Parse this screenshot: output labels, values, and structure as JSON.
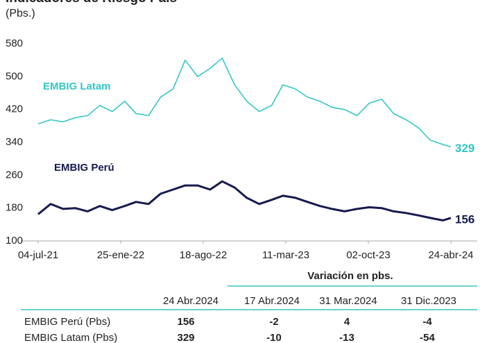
{
  "chart_data": {
    "type": "line",
    "title": "Indicadores de Riesgo País",
    "subtitle": "(Pbs.)",
    "x": [
      "04-jul-21",
      "04-ago-21",
      "04-sep-21",
      "04-oct-21",
      "04-nov-21",
      "04-dic-21",
      "04-ene-22",
      "04-feb-22",
      "04-mar-22",
      "04-abr-22",
      "04-may-22",
      "04-jun-22",
      "04-jul-22",
      "04-ago-22",
      "04-sep-22",
      "04-oct-22",
      "04-nov-22",
      "04-dic-22",
      "04-ene-23",
      "04-feb-23",
      "04-mar-23",
      "04-abr-23",
      "04-may-23",
      "04-jun-23",
      "04-jul-23",
      "04-ago-23",
      "04-sep-23",
      "04-oct-23",
      "04-nov-23",
      "04-dic-23",
      "04-ene-24",
      "04-feb-24",
      "04-mar-24",
      "04-abr-24",
      "24-abr-24"
    ],
    "series": [
      {
        "name": "EMBIG Latam",
        "color": "#33c6c6",
        "values": [
          385,
          395,
          390,
          400,
          405,
          430,
          415,
          440,
          410,
          405,
          450,
          470,
          540,
          500,
          520,
          545,
          480,
          440,
          415,
          430,
          480,
          470,
          450,
          440,
          425,
          420,
          405,
          435,
          445,
          410,
          395,
          375,
          345,
          335,
          329
        ]
      },
      {
        "name": "EMBIG Perú",
        "color": "#161a4e",
        "values": [
          165,
          190,
          178,
          180,
          172,
          185,
          175,
          185,
          195,
          190,
          215,
          225,
          235,
          235,
          225,
          245,
          230,
          205,
          190,
          200,
          210,
          205,
          195,
          185,
          178,
          172,
          178,
          182,
          180,
          172,
          168,
          162,
          156,
          150,
          156
        ]
      }
    ],
    "xlim": [
      "04-jul-21",
      "24-abr-24"
    ],
    "xticks": [
      "04-jul-21",
      "25-ene-22",
      "18-ago-22",
      "11-mar-23",
      "02-oct-23",
      "24-abr-24"
    ],
    "ylim": [
      100,
      580
    ],
    "yticks": [
      100,
      180,
      260,
      340,
      420,
      500,
      580
    ],
    "grid": false
  },
  "table": {
    "group_header": "Variación en pbs.",
    "columns": [
      "24 Abr.2024",
      "17 Abr.2024",
      "31 Mar.2024",
      "31 Dic.2023"
    ],
    "rows": [
      [
        "EMBIG Perú (Pbs)",
        "156",
        "-2",
        "4",
        "-4"
      ],
      [
        "EMBIG Latam (Pbs)",
        "329",
        "-10",
        "-13",
        "-54"
      ]
    ]
  }
}
